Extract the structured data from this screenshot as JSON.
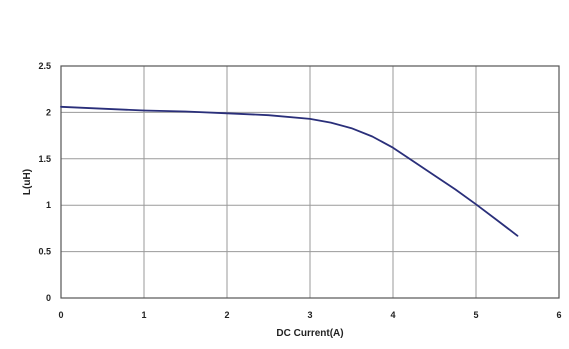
{
  "chart_data": {
    "type": "line",
    "title": "",
    "xlabel": "DC Current(A)",
    "ylabel": "L(uH)",
    "xlim": [
      0,
      6
    ],
    "ylim": [
      0,
      2.5
    ],
    "x_ticks": [
      "0",
      "1",
      "2",
      "3",
      "4",
      "5",
      "6"
    ],
    "y_ticks": [
      "0",
      "0.5",
      "1",
      "1.5",
      "2",
      "2.5"
    ],
    "grid": true,
    "legend": "none",
    "series": [
      {
        "color": "#2a2f7a",
        "x": [
          0,
          0.5,
          1,
          1.5,
          2,
          2.5,
          3,
          3.25,
          3.5,
          3.75,
          4,
          4.25,
          4.5,
          4.75,
          5,
          5.25,
          5.5
        ],
        "y": [
          2.06,
          2.04,
          2.02,
          2.01,
          1.99,
          1.97,
          1.93,
          1.89,
          1.83,
          1.74,
          1.62,
          1.47,
          1.32,
          1.17,
          1.01,
          0.84,
          0.67
        ]
      }
    ]
  }
}
